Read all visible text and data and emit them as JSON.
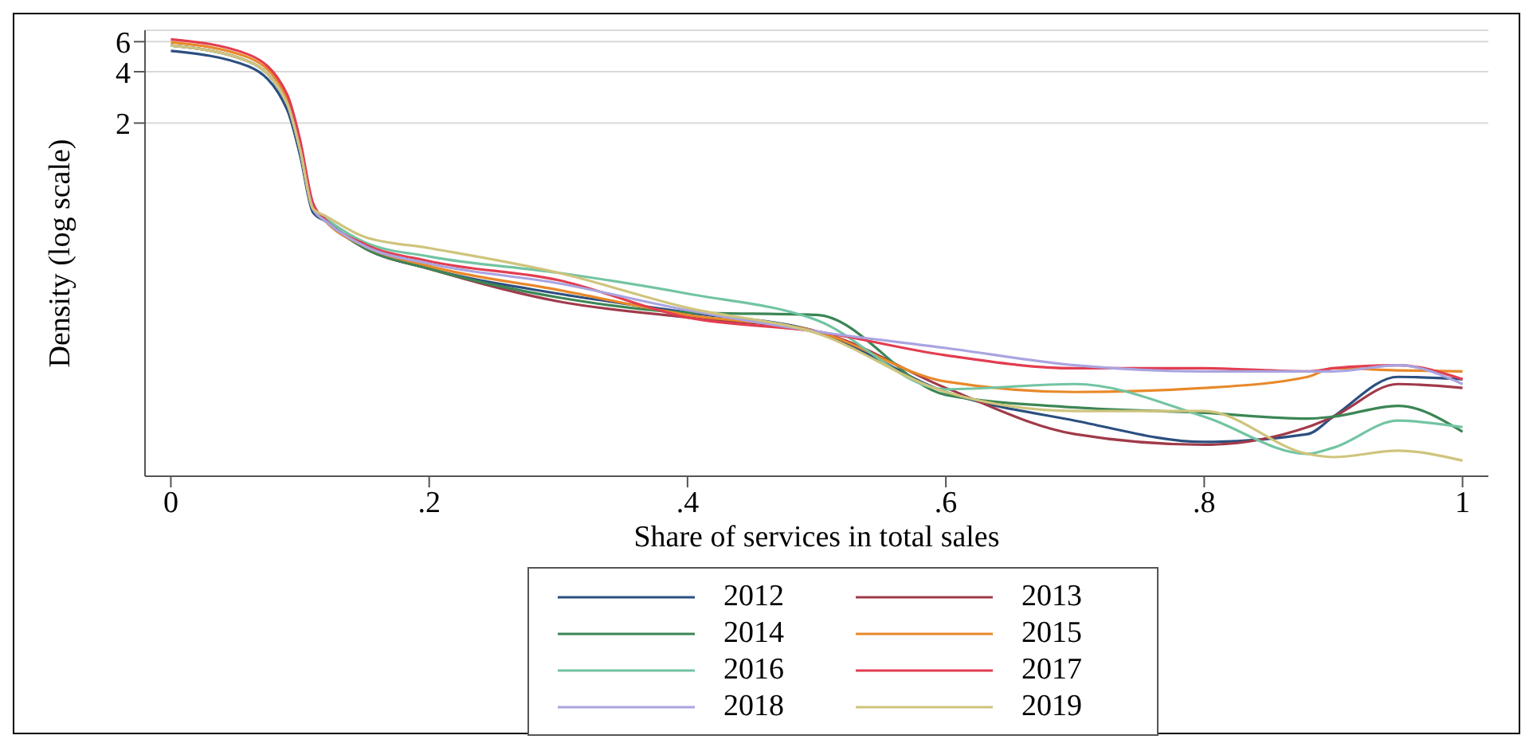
{
  "chart_data": {
    "type": "line",
    "xlabel": "Share of services in total sales",
    "ylabel": "Density (log scale)",
    "log": "y",
    "grid": "y",
    "legend": "bottom",
    "marker": "none",
    "line_style": "solid",
    "x": [
      0,
      0.06,
      0.09,
      0.1,
      0.11,
      0.12,
      0.15,
      0.2,
      0.3,
      0.4,
      0.5,
      0.6,
      0.7,
      0.8,
      0.88,
      0.9,
      0.95,
      1
    ],
    "xlim": [
      -0.02,
      1.02
    ],
    "xticks": [
      {
        "value": 0,
        "label": "0"
      },
      {
        "value": 0.2,
        "label": ".2"
      },
      {
        "value": 0.4,
        "label": ".4"
      },
      {
        "value": 0.6,
        "label": ".6"
      },
      {
        "value": 0.8,
        "label": ".8"
      },
      {
        "value": 1,
        "label": "1"
      }
    ],
    "ylim": [
      0.017,
      7
    ],
    "yticks": [
      2,
      4,
      6
    ],
    "series": [
      {
        "name": "2012",
        "color": "#2b4f80",
        "values": [
          5.3,
          4.3,
          2.4,
          1.3,
          0.6,
          0.53,
          0.37,
          0.28,
          0.2,
          0.155,
          0.12,
          0.053,
          0.036,
          0.027,
          0.03,
          0.038,
          0.065,
          0.063
        ]
      },
      {
        "name": "2013",
        "color": "#a03a4a",
        "values": [
          5.7,
          4.6,
          2.6,
          1.4,
          0.63,
          0.53,
          0.37,
          0.28,
          0.18,
          0.145,
          0.12,
          0.056,
          0.03,
          0.026,
          0.033,
          0.038,
          0.059,
          0.056
        ]
      },
      {
        "name": "2014",
        "color": "#3b8654",
        "values": [
          5.7,
          4.6,
          2.6,
          1.4,
          0.63,
          0.53,
          0.37,
          0.28,
          0.19,
          0.155,
          0.15,
          0.051,
          0.043,
          0.04,
          0.037,
          0.038,
          0.044,
          0.031
        ]
      },
      {
        "name": "2015",
        "color": "#e8892a",
        "values": [
          5.95,
          4.85,
          2.8,
          1.5,
          0.66,
          0.53,
          0.38,
          0.29,
          0.21,
          0.15,
          0.12,
          0.061,
          0.053,
          0.056,
          0.065,
          0.073,
          0.071,
          0.07
        ]
      },
      {
        "name": "2016",
        "color": "#72c4a2",
        "values": [
          5.7,
          4.6,
          2.6,
          1.4,
          0.63,
          0.55,
          0.4,
          0.33,
          0.265,
          0.2,
          0.14,
          0.055,
          0.059,
          0.038,
          0.023,
          0.025,
          0.036,
          0.033
        ]
      },
      {
        "name": "2017",
        "color": "#e23d50",
        "values": [
          6.2,
          5.05,
          2.95,
          1.6,
          0.68,
          0.54,
          0.39,
          0.31,
          0.24,
          0.145,
          0.12,
          0.087,
          0.073,
          0.073,
          0.07,
          0.073,
          0.076,
          0.063
        ]
      },
      {
        "name": "2018",
        "color": "#a9a4e0",
        "values": [
          5.7,
          4.6,
          2.6,
          1.4,
          0.63,
          0.53,
          0.38,
          0.3,
          0.23,
          0.16,
          0.12,
          0.096,
          0.076,
          0.07,
          0.07,
          0.07,
          0.076,
          0.059
        ]
      },
      {
        "name": "2019",
        "color": "#cfc47c",
        "values": [
          5.7,
          4.6,
          2.6,
          1.4,
          0.63,
          0.57,
          0.43,
          0.37,
          0.265,
          0.165,
          0.117,
          0.053,
          0.041,
          0.041,
          0.023,
          0.022,
          0.024,
          0.021
        ]
      }
    ]
  }
}
